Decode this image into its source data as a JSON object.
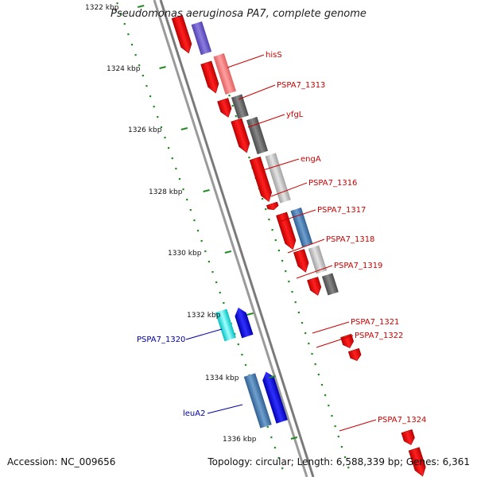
{
  "title": "Pseudomonas aeruginosa PA7, complete genome",
  "footer": {
    "accession": "Accession: NC_009656",
    "summary": "Topology: circular; Length: 6,588,339 bp; Genes: 6,361"
  },
  "colors": {
    "backbone": "#8c8c8c",
    "tick": "#228b22",
    "forward_cds": "#ff0000",
    "label_forward": "#cc0000",
    "label_reverse": "#0000aa"
  },
  "kbp_ticks": [
    "1322 kbp",
    "1324 kbp",
    "1326 kbp",
    "1328 kbp",
    "1330 kbp",
    "1332 kbp",
    "1334 kbp",
    "1336 kbp"
  ],
  "gene_labels": [
    {
      "text": "hisS",
      "strand": "+"
    },
    {
      "text": "PSPA7_1313",
      "strand": "+"
    },
    {
      "text": "yfgL",
      "strand": "+"
    },
    {
      "text": "engA",
      "strand": "+"
    },
    {
      "text": "PSPA7_1316",
      "strand": "+"
    },
    {
      "text": "PSPA7_1317",
      "strand": "+"
    },
    {
      "text": "PSPA7_1318",
      "strand": "+"
    },
    {
      "text": "PSPA7_1319",
      "strand": "+"
    },
    {
      "text": "PSPA7_1321",
      "strand": "+"
    },
    {
      "text": "PSPA7_1322",
      "strand": "+"
    },
    {
      "text": "PSPA7_1324",
      "strand": "+"
    },
    {
      "text": "PSPA7_1320",
      "strand": "-"
    },
    {
      "text": "leuA2",
      "strand": "-"
    }
  ]
}
